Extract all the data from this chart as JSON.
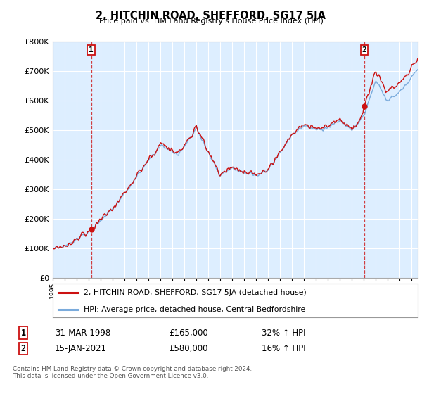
{
  "title": "2, HITCHIN ROAD, SHEFFORD, SG17 5JA",
  "subtitle": "Price paid vs. HM Land Registry's House Price Index (HPI)",
  "ylim": [
    0,
    800000
  ],
  "yticks": [
    0,
    100000,
    200000,
    300000,
    400000,
    500000,
    600000,
    700000,
    800000
  ],
  "hpi_color": "#7aabdc",
  "price_color": "#cc1111",
  "plot_bg_color": "#ddeeff",
  "background_color": "#ffffff",
  "grid_color": "#ffffff",
  "annotation1": {
    "label": "1",
    "date": "31-MAR-1998",
    "price": 165000,
    "hpi_pct": "32% ↑ HPI"
  },
  "annotation2": {
    "label": "2",
    "date": "15-JAN-2021",
    "price": 580000,
    "hpi_pct": "16% ↑ HPI"
  },
  "legend_property": "2, HITCHIN ROAD, SHEFFORD, SG17 5JA (detached house)",
  "legend_hpi": "HPI: Average price, detached house, Central Bedfordshire",
  "footer": "Contains HM Land Registry data © Crown copyright and database right 2024.\nThis data is licensed under the Open Government Licence v3.0.",
  "sale1_year": 1998.21,
  "sale1_price": 165000,
  "sale2_year": 2021.04,
  "sale2_price": 580000,
  "xlim_start": 1995.0,
  "xlim_end": 2025.5
}
